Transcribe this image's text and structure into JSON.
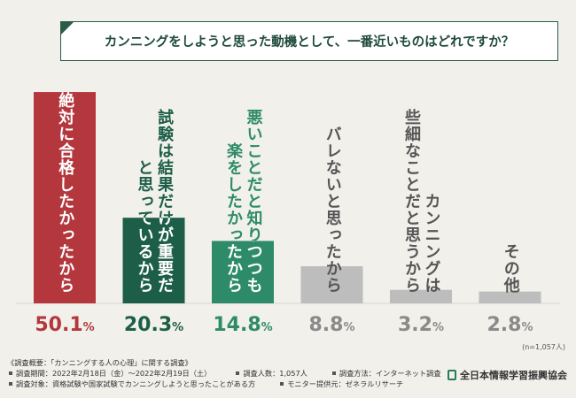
{
  "chart_data": {
    "type": "bar",
    "title": "カンニングをしようと思った動機として、一番近いものはどれですか？",
    "categories": [
      [
        "絶対に合格したかったから"
      ],
      [
        "試験は結果だけが重要だ",
        "と思っているから"
      ],
      [
        "悪いことだと知りつつも",
        "楽をしたかったから"
      ],
      [
        "バレないと思ったから"
      ],
      [
        "カンニングは",
        "些細なことだと思うから"
      ],
      [
        "その他"
      ]
    ],
    "values": [
      50.1,
      20.3,
      14.8,
      8.8,
      3.2,
      2.8
    ],
    "value_labels": [
      "50.1%",
      "20.3%",
      "14.8%",
      "8.8%",
      "3.2%",
      "2.8%"
    ],
    "colors": [
      "#b3373d",
      "#1d5e49",
      "#2e8b69",
      "#bdbdbd",
      "#bdbdbd",
      "#bdbdbd"
    ],
    "ylim": [
      0,
      52
    ],
    "note": "(n=1,057人)",
    "footer": {
      "heading": "《調査概要：「カンニングする人の心理」に関する調査》",
      "items": [
        [
          "調査期間：2022年2月18日（金）～2022年2月19日（土）",
          "調査人数：1,057人",
          "調査方法：インターネット調査"
        ],
        [
          "調査対象：資格試験や国家試験でカンニングしようと思ったことがある方",
          "モニター提供元：ゼネラルリサーチ"
        ]
      ]
    },
    "brand": "全日本情報学習振興協会"
  }
}
